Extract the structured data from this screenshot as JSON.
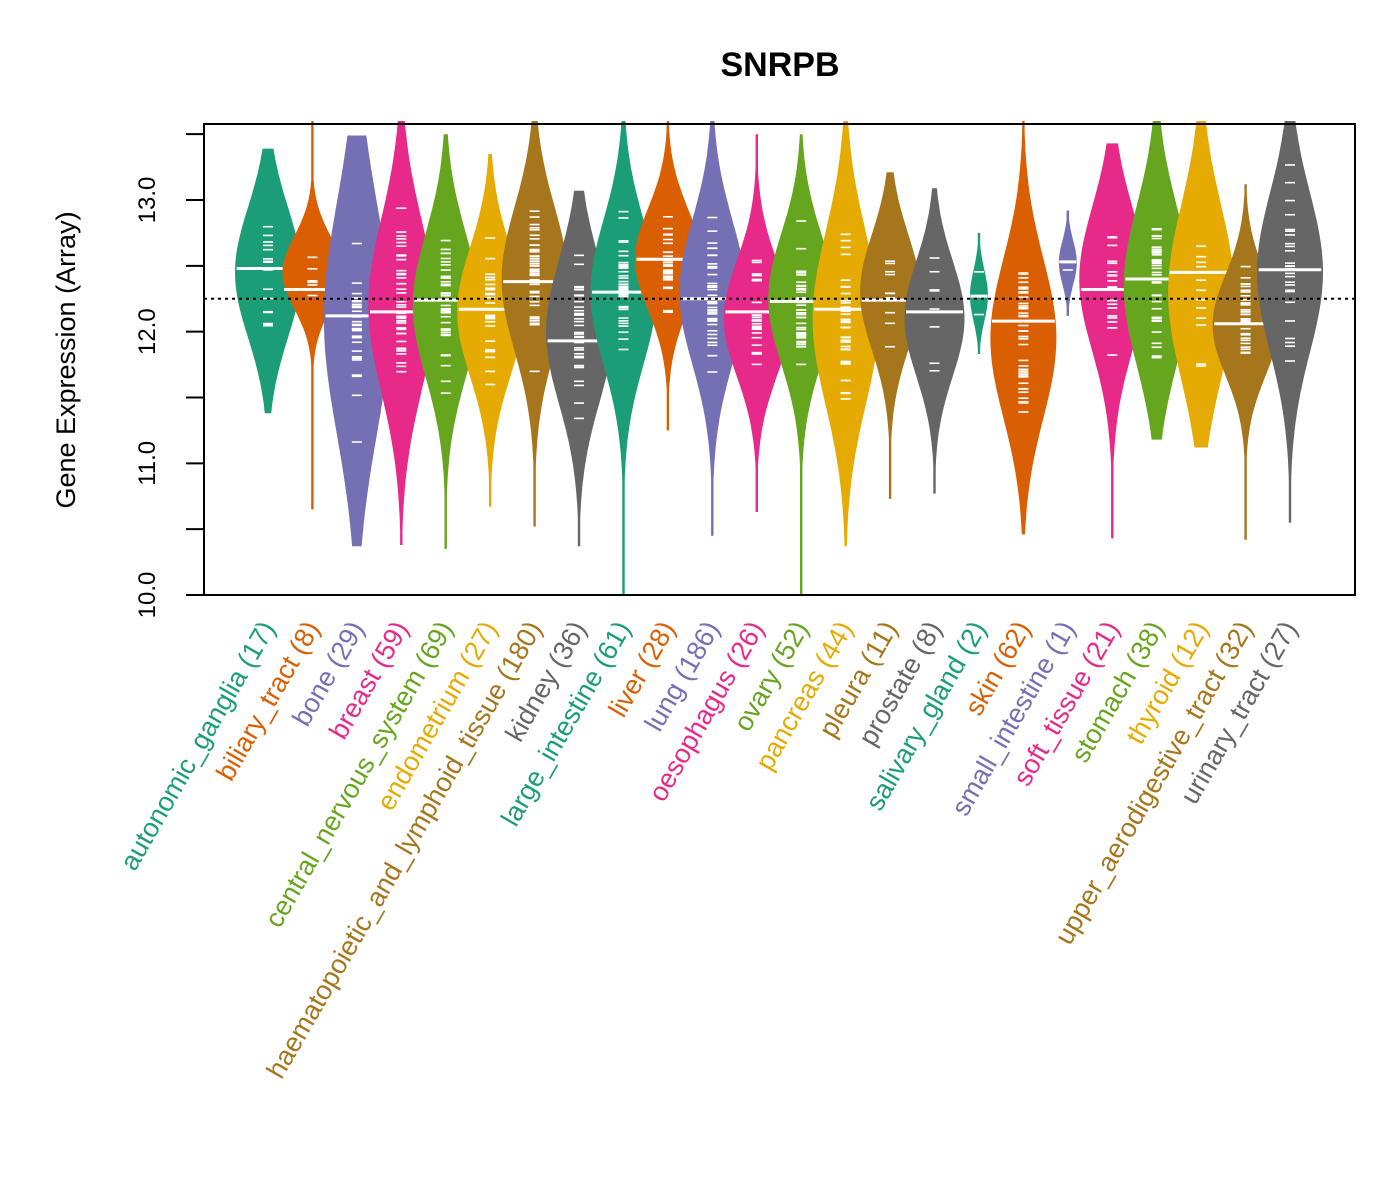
{
  "chart_data": {
    "type": "violin",
    "title": "SNRPB",
    "xlabel": "",
    "ylabel": "Gene Expression (Array)",
    "ylim": [
      10.0,
      13.6
    ],
    "yticks": [
      10.0,
      10.5,
      11.0,
      11.5,
      12.0,
      12.5,
      13.0,
      13.5
    ],
    "ytick_labels": [
      "10.0",
      "",
      "11.0",
      "",
      "12.0",
      "",
      "13.0",
      ""
    ],
    "reference_line": 12.25,
    "grid": false,
    "legend": "none",
    "groups": [
      {
        "name": "autonomic_ganglia",
        "n": 17,
        "color": "#1B9E77",
        "median": 12.48,
        "min": 11.38,
        "max": 13.39,
        "q_low": 12.0,
        "q_high": 12.9
      },
      {
        "name": "biliary_tract",
        "n": 8,
        "color": "#D95F02",
        "median": 12.32,
        "min": 10.65,
        "max": 13.6,
        "q_low": 12.2,
        "q_high": 12.7
      },
      {
        "name": "bone",
        "n": 29,
        "color": "#7570B3",
        "median": 12.12,
        "min": 10.37,
        "max": 13.49,
        "q_low": 11.3,
        "q_high": 12.9
      },
      {
        "name": "breast",
        "n": 59,
        "color": "#E7298A",
        "median": 12.15,
        "min": 10.38,
        "max": 13.6,
        "q_low": 11.6,
        "q_high": 12.8
      },
      {
        "name": "central_nervous_system",
        "n": 69,
        "color": "#66A61E",
        "median": 12.24,
        "min": 10.35,
        "max": 13.5,
        "q_low": 11.7,
        "q_high": 12.7
      },
      {
        "name": "endometrium",
        "n": 27,
        "color": "#E6AB02",
        "median": 12.17,
        "min": 10.67,
        "max": 13.35,
        "q_low": 11.7,
        "q_high": 12.6
      },
      {
        "name": "haematopoietic_and_lymphoid_tissue",
        "n": 180,
        "color": "#A6761D",
        "median": 12.38,
        "min": 10.52,
        "max": 13.6,
        "q_low": 11.9,
        "q_high": 12.9
      },
      {
        "name": "kidney",
        "n": 36,
        "color": "#666666",
        "median": 11.93,
        "min": 10.37,
        "max": 13.07,
        "q_low": 11.5,
        "q_high": 12.5
      },
      {
        "name": "large_intestine",
        "n": 61,
        "color": "#1B9E77",
        "median": 12.3,
        "min": 10.0,
        "max": 13.6,
        "q_low": 11.8,
        "q_high": 12.8
      },
      {
        "name": "liver",
        "n": 28,
        "color": "#D95F02",
        "median": 12.55,
        "min": 11.25,
        "max": 13.6,
        "q_low": 12.2,
        "q_high": 12.9
      },
      {
        "name": "lung",
        "n": 186,
        "color": "#7570B3",
        "median": 12.25,
        "min": 10.45,
        "max": 13.6,
        "q_low": 11.8,
        "q_high": 12.8
      },
      {
        "name": "oesophagus",
        "n": 26,
        "color": "#E7298A",
        "median": 12.15,
        "min": 10.63,
        "max": 13.5,
        "q_low": 11.7,
        "q_high": 12.5
      },
      {
        "name": "ovary",
        "n": 52,
        "color": "#66A61E",
        "median": 12.23,
        "min": 10.0,
        "max": 13.5,
        "q_low": 11.8,
        "q_high": 12.7
      },
      {
        "name": "pancreas",
        "n": 44,
        "color": "#E6AB02",
        "median": 12.17,
        "min": 10.37,
        "max": 13.6,
        "q_low": 11.5,
        "q_high": 12.7
      },
      {
        "name": "pleura",
        "n": 11,
        "color": "#A6761D",
        "median": 12.24,
        "min": 10.73,
        "max": 13.21,
        "q_low": 11.9,
        "q_high": 12.7
      },
      {
        "name": "prostate",
        "n": 8,
        "color": "#666666",
        "median": 12.15,
        "min": 10.77,
        "max": 13.09,
        "q_low": 11.7,
        "q_high": 12.5
      },
      {
        "name": "salivary_gland",
        "n": 2,
        "color": "#1B9E77",
        "median": 12.27,
        "min": 11.83,
        "max": 12.75,
        "q_low": 12.1,
        "q_high": 12.45
      },
      {
        "name": "skin",
        "n": 62,
        "color": "#D95F02",
        "median": 12.08,
        "min": 10.46,
        "max": 13.6,
        "q_low": 11.4,
        "q_high": 12.5
      },
      {
        "name": "small_intestine",
        "n": 1,
        "color": "#7570B3",
        "median": 12.53,
        "min": 12.12,
        "max": 12.92,
        "q_low": 12.4,
        "q_high": 12.65
      },
      {
        "name": "soft_tissue",
        "n": 21,
        "color": "#E7298A",
        "median": 12.32,
        "min": 10.43,
        "max": 13.43,
        "q_low": 11.9,
        "q_high": 12.9
      },
      {
        "name": "stomach",
        "n": 38,
        "color": "#66A61E",
        "median": 12.4,
        "min": 11.18,
        "max": 13.6,
        "q_low": 11.8,
        "q_high": 12.9
      },
      {
        "name": "thyroid",
        "n": 12,
        "color": "#E6AB02",
        "median": 12.45,
        "min": 11.12,
        "max": 13.6,
        "q_low": 11.7,
        "q_high": 12.9
      },
      {
        "name": "upper_aerodigestive_tract",
        "n": 32,
        "color": "#A6761D",
        "median": 12.06,
        "min": 10.42,
        "max": 13.12,
        "q_low": 11.7,
        "q_high": 12.4
      },
      {
        "name": "urinary_tract",
        "n": 27,
        "color": "#666666",
        "median": 12.47,
        "min": 10.55,
        "max": 13.6,
        "q_low": 11.9,
        "q_high": 13.0
      }
    ]
  }
}
